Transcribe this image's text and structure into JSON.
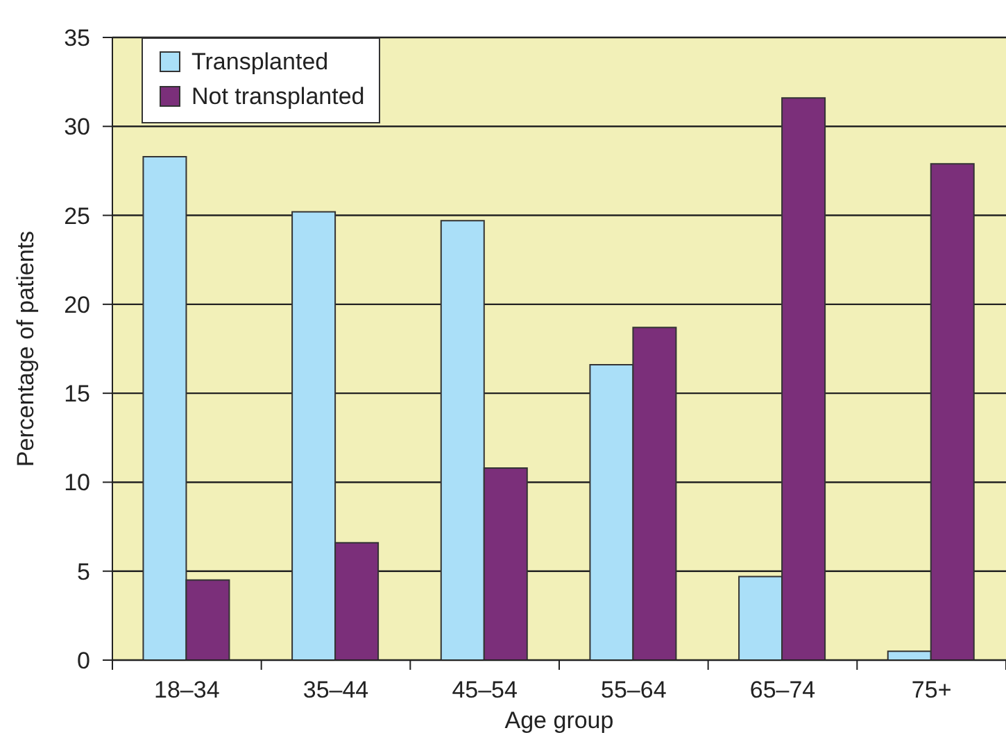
{
  "chart_data": {
    "type": "bar",
    "xlabel": "Age group",
    "ylabel": "Percentage of patients",
    "categories": [
      "18–34",
      "35–44",
      "45–54",
      "55–64",
      "65–74",
      "75+"
    ],
    "series": [
      {
        "name": "Transplanted",
        "color": "#aadff8",
        "values": [
          28.3,
          25.2,
          24.7,
          16.6,
          4.7,
          0.5
        ]
      },
      {
        "name": "Not transplanted",
        "color": "#7b2f7a",
        "values": [
          4.5,
          6.6,
          10.8,
          18.7,
          31.6,
          27.9
        ]
      }
    ],
    "ylim": [
      0,
      35
    ],
    "yticks": [
      0,
      5,
      10,
      15,
      20,
      25,
      30,
      35
    ],
    "grid": "y",
    "legend": "top left"
  }
}
